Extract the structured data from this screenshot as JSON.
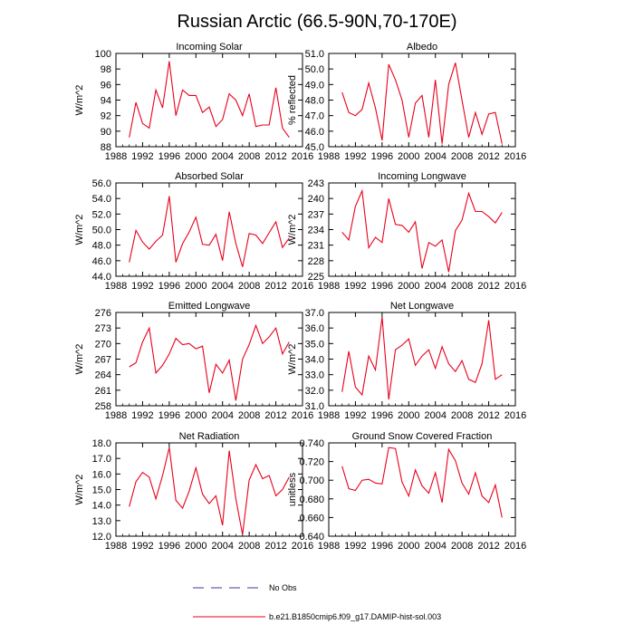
{
  "figure": {
    "title": "Russian Arctic (66.5-90N,70-170E)",
    "line_color": "#e8001c",
    "obs_color": "#3a3aa0"
  },
  "legend": {
    "obs_label": "No Obs",
    "model_label": "b.e21.B1850cmip6.f09_g17.DAMIP-hist-sol.003"
  },
  "chart_data": [
    {
      "type": "line",
      "title": "Incoming Solar",
      "ylabel": "W/m^2",
      "xlim": [
        1988,
        2016
      ],
      "ylim": [
        88,
        100
      ],
      "xticks": [
        "1988",
        "1992",
        "1996",
        "2000",
        "2004",
        "2008",
        "2012",
        "2016"
      ],
      "yticks": [
        "88",
        "90",
        "92",
        "94",
        "96",
        "98",
        "100"
      ],
      "x": [
        1990,
        1991,
        1992,
        1993,
        1994,
        1995,
        1996,
        1997,
        1998,
        1999,
        2000,
        2001,
        2002,
        2003,
        2004,
        2005,
        2006,
        2007,
        2008,
        2009,
        2010,
        2011,
        2012,
        2013,
        2014
      ],
      "values": [
        89.2,
        93.7,
        91.0,
        90.4,
        95.3,
        93.0,
        99.0,
        92.0,
        95.3,
        94.6,
        94.6,
        92.4,
        93.1,
        90.6,
        91.5,
        94.8,
        94.0,
        92.0,
        94.8,
        90.6,
        90.8,
        90.8,
        95.6,
        90.4,
        89.2
      ]
    },
    {
      "type": "line",
      "title": "Albedo",
      "ylabel": "% reflected",
      "xlim": [
        1988,
        2016
      ],
      "ylim": [
        45.0,
        51.0
      ],
      "xticks": [
        "1988",
        "1992",
        "1996",
        "2000",
        "2004",
        "2008",
        "2012",
        "2016"
      ],
      "yticks": [
        "45.0",
        "46.0",
        "47.0",
        "48.0",
        "49.0",
        "50.0",
        "51.0"
      ],
      "x": [
        1990,
        1991,
        1992,
        1993,
        1994,
        1995,
        1996,
        1997,
        1998,
        1999,
        2000,
        2001,
        2002,
        2003,
        2004,
        2005,
        2006,
        2007,
        2008,
        2009,
        2010,
        2011,
        2012,
        2013,
        2014
      ],
      "values": [
        48.5,
        47.2,
        47.0,
        47.4,
        49.1,
        47.5,
        45.4,
        50.3,
        49.3,
        48.0,
        45.6,
        47.8,
        48.3,
        45.6,
        49.3,
        45.2,
        49.0,
        50.4,
        48.0,
        45.6,
        47.2,
        45.8,
        47.1,
        47.2,
        45.2
      ]
    },
    {
      "type": "line",
      "title": "Absorbed Solar",
      "ylabel": "W/m^2",
      "xlim": [
        1988,
        2016
      ],
      "ylim": [
        44.0,
        56.0
      ],
      "xticks": [
        "1988",
        "1992",
        "1996",
        "2000",
        "2004",
        "2008",
        "2012",
        "2016"
      ],
      "yticks": [
        "44.0",
        "46.0",
        "48.0",
        "50.0",
        "52.0",
        "54.0",
        "56.0"
      ],
      "x": [
        1990,
        1991,
        1992,
        1993,
        1994,
        1995,
        1996,
        1997,
        1998,
        1999,
        2000,
        2001,
        2002,
        2003,
        2004,
        2005,
        2006,
        2007,
        2008,
        2009,
        2010,
        2011,
        2012,
        2013,
        2014
      ],
      "values": [
        45.8,
        49.9,
        48.4,
        47.5,
        48.5,
        49.3,
        54.3,
        45.8,
        48.2,
        49.7,
        51.6,
        48.1,
        48.0,
        49.4,
        46.0,
        52.3,
        48.2,
        45.2,
        49.5,
        49.3,
        48.2,
        49.6,
        51.0,
        47.7,
        48.9
      ]
    },
    {
      "type": "line",
      "title": "Incoming Longwave",
      "ylabel": "W/m^2",
      "xlim": [
        1988,
        2016
      ],
      "ylim": [
        225,
        243
      ],
      "xticks": [
        "1988",
        "1992",
        "1996",
        "2000",
        "2004",
        "2008",
        "2012",
        "2016"
      ],
      "yticks": [
        "225",
        "228",
        "231",
        "234",
        "237",
        "240",
        "243"
      ],
      "x": [
        1990,
        1991,
        1992,
        1993,
        1994,
        1995,
        1996,
        1997,
        1998,
        1999,
        2000,
        2001,
        2002,
        2003,
        2004,
        2005,
        2006,
        2007,
        2008,
        2009,
        2010,
        2011,
        2012,
        2013,
        2014
      ],
      "values": [
        233.5,
        232.0,
        238.5,
        241.5,
        230.5,
        232.5,
        231.5,
        240.0,
        235.0,
        234.8,
        233.5,
        235.5,
        226.5,
        231.5,
        230.8,
        232.0,
        225.8,
        233.8,
        235.8,
        241.0,
        237.5,
        237.5,
        236.5,
        235.3,
        237.3
      ]
    },
    {
      "type": "line",
      "title": "Emitted Longwave",
      "ylabel": "W/m^2",
      "xlim": [
        1988,
        2016
      ],
      "ylim": [
        258,
        276
      ],
      "xticks": [
        "1988",
        "1992",
        "1996",
        "2000",
        "2004",
        "2008",
        "2012",
        "2016"
      ],
      "yticks": [
        "258",
        "261",
        "264",
        "267",
        "270",
        "273",
        "276"
      ],
      "x": [
        1990,
        1991,
        1992,
        1993,
        1994,
        1995,
        1996,
        1997,
        1998,
        1999,
        2000,
        2001,
        2002,
        2003,
        2004,
        2005,
        2006,
        2007,
        2008,
        2009,
        2010,
        2011,
        2012,
        2013,
        2014
      ],
      "values": [
        265.5,
        266.3,
        270.3,
        273.0,
        264.3,
        265.8,
        268.0,
        271.0,
        269.8,
        270.0,
        269.0,
        269.5,
        260.5,
        266.0,
        264.3,
        266.8,
        259.0,
        267.0,
        269.8,
        273.5,
        270.0,
        271.3,
        273.0,
        268.0,
        270.3
      ]
    },
    {
      "type": "line",
      "title": "Net Longwave",
      "ylabel": "W/m^2",
      "xlim": [
        1988,
        2016
      ],
      "ylim": [
        31.0,
        37.0
      ],
      "xticks": [
        "1988",
        "1992",
        "1996",
        "2000",
        "2004",
        "2008",
        "2012",
        "2016"
      ],
      "yticks": [
        "31.0",
        "32.0",
        "33.0",
        "34.0",
        "35.0",
        "36.0",
        "37.0"
      ],
      "x": [
        1990,
        1991,
        1992,
        1993,
        1994,
        1995,
        1996,
        1997,
        1998,
        1999,
        2000,
        2001,
        2002,
        2003,
        2004,
        2005,
        2006,
        2007,
        2008,
        2009,
        2010,
        2011,
        2012,
        2013,
        2014
      ],
      "values": [
        31.9,
        34.5,
        32.2,
        31.7,
        34.2,
        33.3,
        36.7,
        31.4,
        34.6,
        34.9,
        35.3,
        33.6,
        34.2,
        34.6,
        33.4,
        34.8,
        33.7,
        33.2,
        33.9,
        32.7,
        32.5,
        33.7,
        36.5,
        32.7,
        33.0
      ]
    },
    {
      "type": "line",
      "title": "Net Radiation",
      "ylabel": "W/m^2",
      "xlim": [
        1988,
        2016
      ],
      "ylim": [
        12.0,
        18.0
      ],
      "xticks": [
        "1988",
        "1992",
        "1996",
        "2000",
        "2004",
        "2008",
        "2012",
        "2016"
      ],
      "yticks": [
        "12.0",
        "13.0",
        "14.0",
        "15.0",
        "16.0",
        "17.0",
        "18.0"
      ],
      "x": [
        1990,
        1991,
        1992,
        1993,
        1994,
        1995,
        1996,
        1997,
        1998,
        1999,
        2000,
        2001,
        2002,
        2003,
        2004,
        2005,
        2006,
        2007,
        2008,
        2009,
        2010,
        2011,
        2012,
        2013,
        2014
      ],
      "values": [
        13.9,
        15.5,
        16.1,
        15.8,
        14.4,
        15.9,
        17.7,
        14.3,
        13.8,
        14.9,
        16.4,
        14.7,
        14.1,
        14.6,
        12.7,
        17.5,
        14.4,
        12.1,
        15.6,
        16.6,
        15.7,
        15.9,
        14.6,
        15.0,
        15.8
      ]
    },
    {
      "type": "line",
      "title": "Ground Snow Covered Fraction",
      "ylabel": "unitless",
      "xlim": [
        1988,
        2016
      ],
      "ylim": [
        0.64,
        0.74
      ],
      "xticks": [
        "1988",
        "1992",
        "1996",
        "2000",
        "2004",
        "2008",
        "2012",
        "2016"
      ],
      "yticks": [
        "0.640",
        "0.660",
        "0.680",
        "0.700",
        "0.720",
        "0.740"
      ],
      "x": [
        1990,
        1991,
        1992,
        1993,
        1994,
        1995,
        1996,
        1997,
        1998,
        1999,
        2000,
        2001,
        2002,
        2003,
        2004,
        2005,
        2006,
        2007,
        2008,
        2009,
        2010,
        2011,
        2012,
        2013,
        2014
      ],
      "values": [
        0.715,
        0.691,
        0.689,
        0.7,
        0.701,
        0.697,
        0.696,
        0.735,
        0.734,
        0.698,
        0.683,
        0.711,
        0.694,
        0.686,
        0.708,
        0.676,
        0.733,
        0.721,
        0.697,
        0.685,
        0.708,
        0.683,
        0.676,
        0.695,
        0.66
      ]
    }
  ]
}
